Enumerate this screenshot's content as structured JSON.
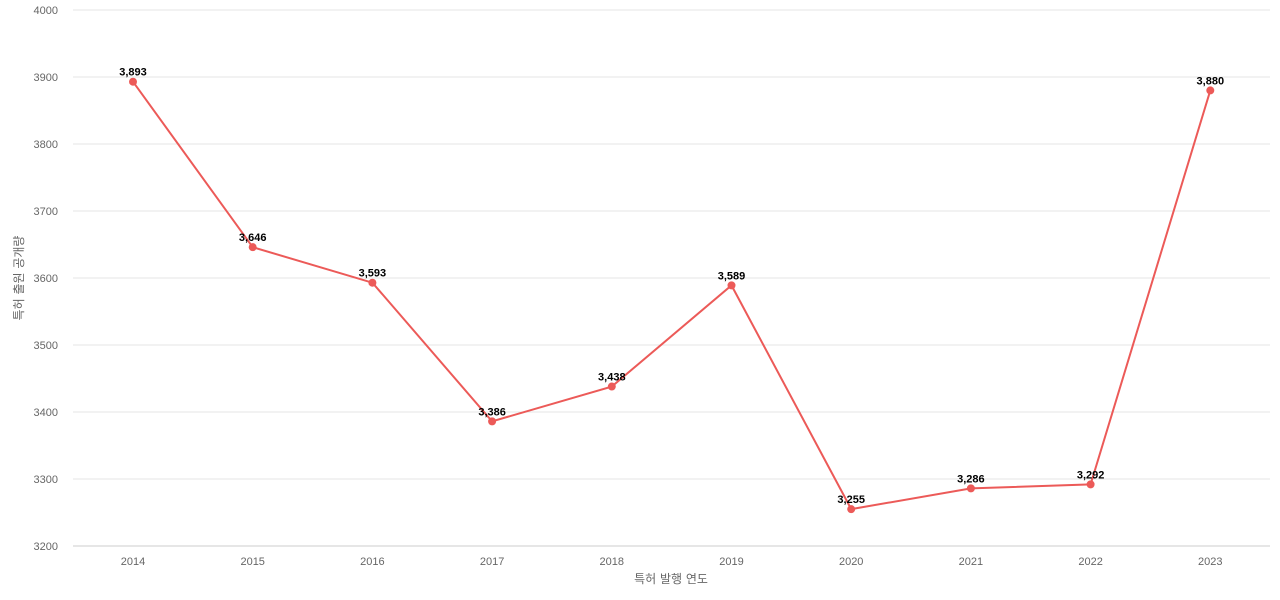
{
  "chart_data": {
    "type": "line",
    "xlabel": "특허 발행 연도",
    "ylabel": "특허 출원 공개량",
    "ylim": [
      3200,
      4000
    ],
    "yticks": [
      3200,
      3300,
      3400,
      3500,
      3600,
      3700,
      3800,
      3900,
      4000
    ],
    "grid": true,
    "categories": [
      "2014",
      "2015",
      "2016",
      "2017",
      "2018",
      "2019",
      "2020",
      "2021",
      "2022",
      "2023"
    ],
    "series": [
      {
        "values": [
          3893,
          3646,
          3593,
          3386,
          3438,
          3589,
          3255,
          3286,
          3292,
          3880
        ],
        "data_labels": [
          "3,893",
          "3,646",
          "3,593",
          "3,386",
          "3,438",
          "3,589",
          "3,255",
          "3,286",
          "3,292",
          "3,880"
        ],
        "color": "#ec5a58"
      }
    ]
  }
}
